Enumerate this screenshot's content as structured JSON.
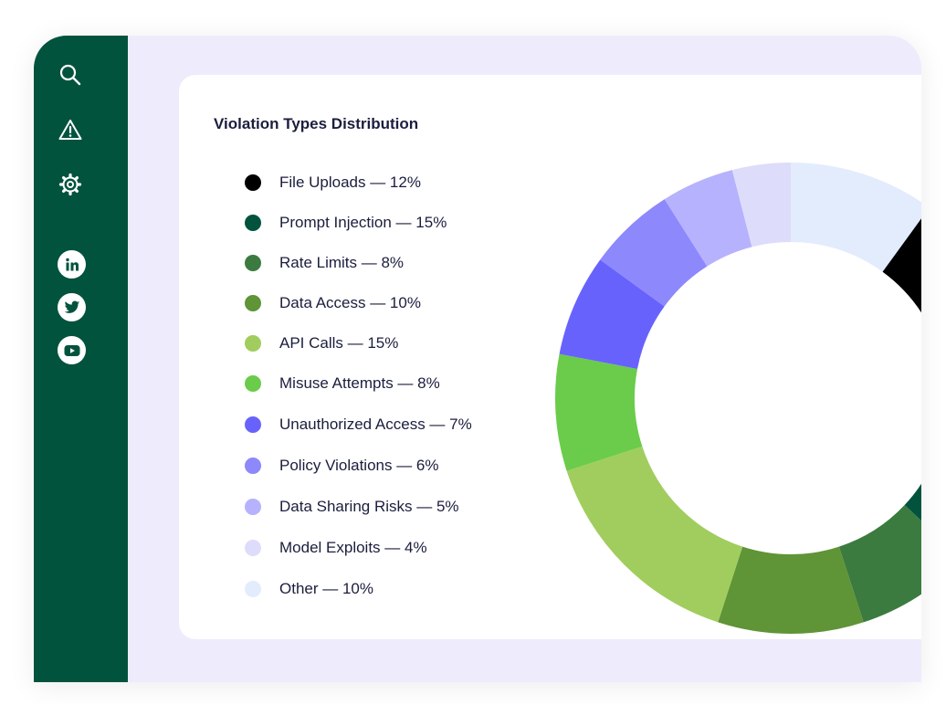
{
  "sidebar": {
    "nav": [
      {
        "icon": "search-icon"
      },
      {
        "icon": "alert-icon"
      },
      {
        "icon": "gear-icon"
      }
    ],
    "social": [
      {
        "icon": "linkedin-icon"
      },
      {
        "icon": "twitter-icon"
      },
      {
        "icon": "youtube-icon"
      }
    ],
    "bg_color": "#02533d"
  },
  "card": {
    "title": "Violation Types Distribution"
  },
  "chart_data": {
    "type": "pie",
    "donut": true,
    "title": "Violation Types Distribution",
    "legend_position": "left",
    "series": [
      {
        "name": "File Uploads",
        "label": "File Uploads — 12%",
        "value": 12,
        "color": "#000000"
      },
      {
        "name": "Prompt Injection",
        "label": "Prompt Injection — 15%",
        "value": 15,
        "color": "#02533d"
      },
      {
        "name": "Rate Limits",
        "label": "Rate Limits — 8%",
        "value": 8,
        "color": "#3b7b3f"
      },
      {
        "name": "Data Access",
        "label": "Data Access — 10%",
        "value": 10,
        "color": "#5f9437"
      },
      {
        "name": "API Calls",
        "label": "API Calls — 15%",
        "value": 15,
        "color": "#a1cd5e"
      },
      {
        "name": "Misuse Attempts",
        "label": "Misuse Attempts — 8%",
        "value": 8,
        "color": "#6acc4a"
      },
      {
        "name": "Unauthorized Access",
        "label": "Unauthorized Access — 7%",
        "value": 7,
        "color": "#6862fd"
      },
      {
        "name": "Policy Violations",
        "label": "Policy Violations — 6%",
        "value": 6,
        "color": "#8d88fc"
      },
      {
        "name": "Data Sharing Risks",
        "label": "Data Sharing Risks — 5%",
        "value": 5,
        "color": "#b6b2fd"
      },
      {
        "name": "Model Exploits",
        "label": "Model Exploits — 4%",
        "value": 4,
        "color": "#dedcfb"
      },
      {
        "name": "Other",
        "label": "Other — 10%",
        "value": 10,
        "color": "#e2ecfd"
      }
    ]
  }
}
